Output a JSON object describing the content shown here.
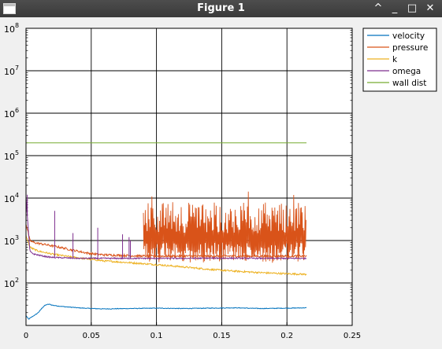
{
  "window": {
    "title": "Figure 1",
    "controls": {
      "up": "^",
      "minimize": "_",
      "maximize": "□",
      "close": "✕"
    }
  },
  "chart_data": {
    "type": "line",
    "title": "",
    "xlabel": "",
    "ylabel": "",
    "xlim": [
      0,
      0.25
    ],
    "ylim": [
      10,
      100000000
    ],
    "yscale": "log",
    "grid": true,
    "legend_position": "top-right",
    "x_ticks": [
      "0",
      "0.05",
      "0.1",
      "0.15",
      "0.2",
      "0.25"
    ],
    "y_ticks": [
      {
        "base": "10",
        "exp": "2"
      },
      {
        "base": "10",
        "exp": "3"
      },
      {
        "base": "10",
        "exp": "4"
      },
      {
        "base": "10",
        "exp": "5"
      },
      {
        "base": "10",
        "exp": "6"
      },
      {
        "base": "10",
        "exp": "7"
      },
      {
        "base": "10",
        "exp": "8"
      }
    ],
    "series": [
      {
        "name": "velocity",
        "color": "#0072bd",
        "x": [
          0,
          0.002,
          0.004,
          0.006,
          0.008,
          0.01,
          0.012,
          0.014,
          0.016,
          0.018,
          0.02,
          0.025,
          0.03,
          0.04,
          0.05,
          0.06,
          0.08,
          0.1,
          0.12,
          0.14,
          0.16,
          0.18,
          0.2,
          0.215
        ],
        "y": [
          17,
          14,
          15.5,
          17,
          18.5,
          21,
          25,
          29,
          31,
          31.5,
          30,
          28.5,
          27.5,
          26,
          25,
          24.5,
          25,
          25.5,
          25,
          25.5,
          26,
          25,
          25.5,
          26
        ]
      },
      {
        "name": "pressure",
        "color": "#d95319",
        "x": [
          0,
          0.003,
          0.006,
          0.01,
          0.015,
          0.02,
          0.025,
          0.03,
          0.035,
          0.04,
          0.045,
          0.05,
          0.06,
          0.07,
          0.08,
          0.09,
          0.1,
          0.12,
          0.14,
          0.16,
          0.18,
          0.2,
          0.215
        ],
        "y": [
          2500,
          1000,
          900,
          850,
          800,
          750,
          700,
          650,
          600,
          560,
          520,
          490,
          460,
          450,
          440,
          430,
          430,
          430,
          430,
          430,
          430,
          430,
          430
        ],
        "band_start": 0.09,
        "band_end": 0.215,
        "band_low": 300,
        "band_high": 8000,
        "band_peak": 15000
      },
      {
        "name": "k",
        "color": "#edb120",
        "x": [
          0,
          0.003,
          0.006,
          0.01,
          0.02,
          0.03,
          0.04,
          0.05,
          0.06,
          0.08,
          0.1,
          0.12,
          0.14,
          0.16,
          0.18,
          0.2,
          0.215
        ],
        "y": [
          1300,
          700,
          620,
          560,
          480,
          430,
          390,
          360,
          330,
          300,
          270,
          240,
          210,
          190,
          175,
          165,
          160
        ]
      },
      {
        "name": "omega",
        "color": "#7e2f8e",
        "x": [
          0,
          0.003,
          0.006,
          0.01,
          0.015,
          0.02,
          0.03,
          0.04,
          0.06,
          0.08,
          0.1,
          0.12,
          0.15,
          0.18,
          0.2,
          0.215
        ],
        "y": [
          10000,
          550,
          480,
          450,
          420,
          400,
          390,
          380,
          380,
          380,
          380,
          380,
          385,
          380,
          380,
          380
        ],
        "spikes": [
          {
            "x": 0.001,
            "y": 12000
          },
          {
            "x": 0.022,
            "y": 5000
          },
          {
            "x": 0.036,
            "y": 1500
          },
          {
            "x": 0.055,
            "y": 2000
          },
          {
            "x": 0.074,
            "y": 1400
          },
          {
            "x": 0.079,
            "y": 1200
          },
          {
            "x": 0.08,
            "y": 1000
          }
        ]
      },
      {
        "name": "wall dist",
        "color": "#77ac30",
        "x": [
          0,
          0.215
        ],
        "y": [
          200000,
          200000
        ]
      }
    ]
  }
}
